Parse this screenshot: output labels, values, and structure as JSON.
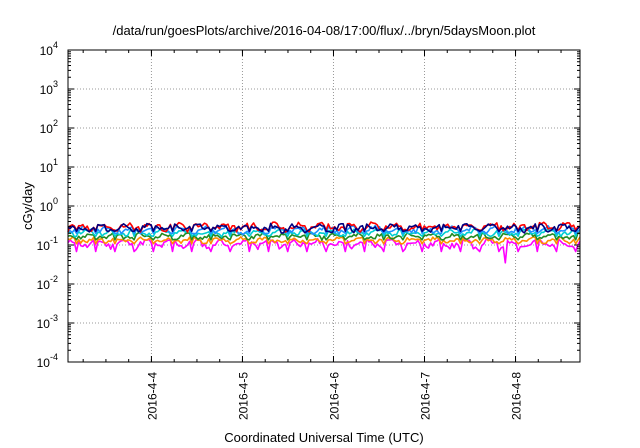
{
  "chart_data": {
    "type": "line",
    "title": "/data/run/goesPlots/archive/2016-04-08/17:00/flux/../bryn/5daysMoon.plot",
    "xlabel": "Coordinated Universal Time (UTC)",
    "ylabel": "cGy/day",
    "yscale": "log",
    "ylim_exponents": [
      -4,
      4
    ],
    "y_ticks": [
      {
        "base": "10",
        "exp": "-4"
      },
      {
        "base": "10",
        "exp": "-3"
      },
      {
        "base": "10",
        "exp": "-2"
      },
      {
        "base": "10",
        "exp": "-1"
      },
      {
        "base": "10",
        "exp": "0"
      },
      {
        "base": "10",
        "exp": "1"
      },
      {
        "base": "10",
        "exp": "2"
      },
      {
        "base": "10",
        "exp": "3"
      },
      {
        "base": "10",
        "exp": "4"
      }
    ],
    "xlim": [
      "2016-04-03 02:00",
      "2016-04-08 17:00"
    ],
    "x_ticks": [
      "2016-4-4",
      "2016-4-5",
      "2016-4-6",
      "2016-4-7",
      "2016-4-8"
    ],
    "x_tick_times": [
      "2016-04-04 00:00",
      "2016-04-05 00:00",
      "2016-04-06 00:00",
      "2016-04-07 00:00",
      "2016-04-08 00:00"
    ],
    "grid": true,
    "legend": "none",
    "series": [
      {
        "color": "#ff00ff",
        "base": 0.11,
        "amp": 0.018,
        "dips": true
      },
      {
        "color": "#ff8c00",
        "base": 0.135,
        "amp": 0.015
      },
      {
        "color": "#228b22",
        "base": 0.17,
        "amp": 0.018
      },
      {
        "color": "#00ced1",
        "base": 0.21,
        "amp": 0.025
      },
      {
        "color": "#1e90ff",
        "base": 0.25,
        "amp": 0.035
      },
      {
        "color": "#ff0000",
        "base": 0.3,
        "amp": 0.045
      },
      {
        "color": "#000080",
        "base": 0.28,
        "amp": 0.04
      }
    ]
  }
}
